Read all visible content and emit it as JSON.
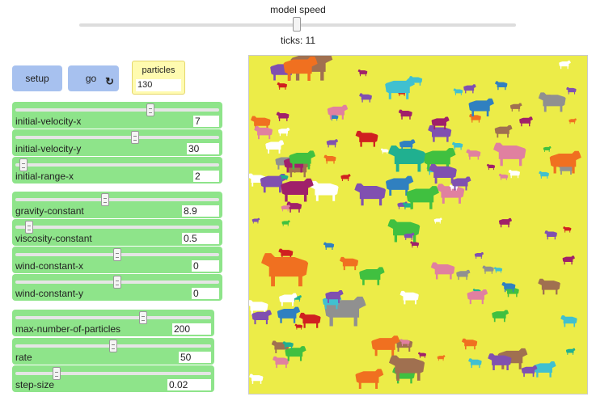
{
  "speed": {
    "label": "model speed",
    "value_fraction": 0.5
  },
  "ticks": {
    "text": "ticks: 11"
  },
  "buttons": {
    "setup": "setup",
    "go": "go",
    "go_icon": "↻"
  },
  "monitor": {
    "label": "particles",
    "value": "130"
  },
  "sliders": [
    {
      "label": "initial-velocity-x",
      "value": "7",
      "position_fraction": 0.67
    },
    {
      "label": "initial-velocity-y",
      "value": "30",
      "position_fraction": 0.59
    },
    {
      "label": "initial-range-x",
      "value": "2",
      "position_fraction": 0.02
    },
    {
      "label": "gravity-constant",
      "value": "8.9",
      "position_fraction": 0.44
    },
    {
      "label": "viscosity-constant",
      "value": "0.5",
      "position_fraction": 0.05
    },
    {
      "label": "wind-constant-x",
      "value": "0",
      "position_fraction": 0.5
    },
    {
      "label": "wind-constant-y",
      "value": "0",
      "position_fraction": 0.5
    },
    {
      "label": "max-number-of-particles",
      "value": "200",
      "position_fraction": 0.66
    },
    {
      "label": "rate",
      "value": "50",
      "position_fraction": 0.5
    },
    {
      "label": "step-size",
      "value": "0.02",
      "position_fraction": 0.2
    }
  ],
  "world": {
    "background": "#ecec48",
    "cow_colors": [
      "#f07020",
      "#8050b0",
      "#e080a0",
      "#20b090",
      "#40c0d0",
      "#3080c0",
      "#a0206a",
      "#d02020",
      "#40c040",
      "#a07050",
      "#909090",
      "#ffffff"
    ]
  }
}
